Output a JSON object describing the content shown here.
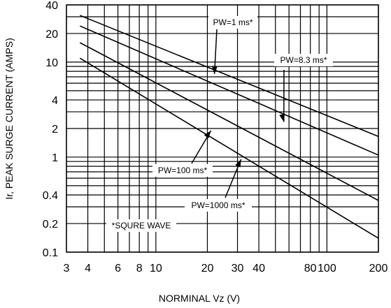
{
  "chart_data": {
    "type": "line",
    "xlabel": "NORMINAL Vz (V)",
    "ylabel": "Ir, PEAK SURGE CURRENT (AMPS)",
    "xscale": "log",
    "yscale": "log",
    "xlim": [
      3,
      200
    ],
    "ylim": [
      0.1,
      40
    ],
    "grid": true,
    "x_tick_labels": [
      {
        "value": 3,
        "label": "3"
      },
      {
        "value": 4,
        "label": "4"
      },
      {
        "value": 6,
        "label": "6"
      },
      {
        "value": 8,
        "label": "8"
      },
      {
        "value": 10,
        "label": "10"
      },
      {
        "value": 20,
        "label": "20"
      },
      {
        "value": 30,
        "label": "30"
      },
      {
        "value": 40,
        "label": "40"
      },
      {
        "value": 80,
        "label": "80"
      },
      {
        "value": 100,
        "label": "100"
      },
      {
        "value": 200,
        "label": "200"
      }
    ],
    "y_tick_labels": [
      {
        "value": 0.1,
        "label": "0.1"
      },
      {
        "value": 0.2,
        "label": "0.2"
      },
      {
        "value": 0.4,
        "label": "0.4"
      },
      {
        "value": 1,
        "label": "1"
      },
      {
        "value": 2,
        "label": "2"
      },
      {
        "value": 4,
        "label": "4"
      },
      {
        "value": 10,
        "label": "10"
      },
      {
        "value": 20,
        "label": "20"
      },
      {
        "value": 40,
        "label": "40"
      }
    ],
    "series": [
      {
        "name": "PW=1 ms*",
        "x": [
          3.6,
          200
        ],
        "y": [
          31,
          1.65
        ]
      },
      {
        "name": "PW=8.3 ms*",
        "x": [
          3.6,
          200
        ],
        "y": [
          24,
          1.05
        ]
      },
      {
        "name": "PW=100 ms*",
        "x": [
          3.6,
          200
        ],
        "y": [
          16,
          0.35
        ]
      },
      {
        "name": "PW=1000 ms*",
        "x": [
          3.6,
          200
        ],
        "y": [
          11,
          0.14
        ]
      }
    ],
    "annotations": [
      {
        "text": "PW=1 ms*",
        "arrow_to": [
          22,
          7.5
        ]
      },
      {
        "text": "PW=8.3 ms*",
        "arrow_to": [
          56,
          2.35
        ]
      },
      {
        "text": "PW=100 ms*",
        "arrow_to": [
          21,
          1.9
        ]
      },
      {
        "text": "PW=1000 ms*",
        "arrow_to": [
          31.5,
          0.95
        ]
      },
      {
        "text": "*SQURE WAVE"
      }
    ],
    "line_color": "#000000",
    "grid_color": "#000000"
  }
}
